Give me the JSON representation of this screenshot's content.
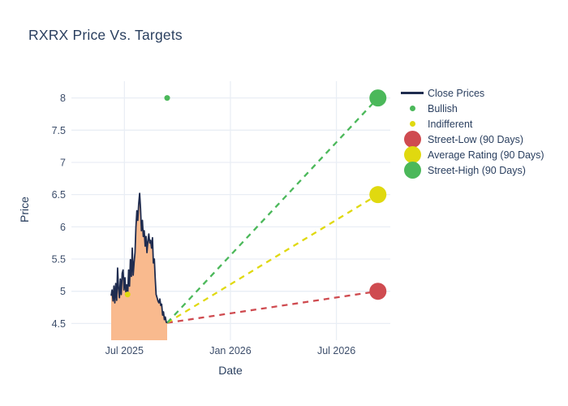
{
  "chart_data": {
    "type": "line",
    "title": "RXRX Price Vs. Targets",
    "xlabel": "Date",
    "ylabel": "Price",
    "x_axis": {
      "ticks": [
        {
          "label": "Jul 2025",
          "month": 0
        },
        {
          "label": "Jan 2026",
          "month": 6
        },
        {
          "label": "Jul 2026",
          "month": 12
        }
      ],
      "range_months": [
        -3,
        15.05
      ]
    },
    "y_axis": {
      "ticks": [
        4.5,
        5,
        5.5,
        6,
        6.5,
        7,
        7.5,
        8
      ],
      "range": [
        4.24,
        8.26
      ]
    },
    "close_prices": {
      "name": "Close Prices",
      "start_month": -0.75,
      "end_month": 2.42,
      "values": [
        4.93,
        5.02,
        4.85,
        5.08,
        4.82,
        5.12,
        4.86,
        5.36,
        5.05,
        4.9,
        5.19,
        4.95,
        5.28,
        5.33,
        5.02,
        5.21,
        4.99,
        5.1,
        4.95,
        5.33,
        5.08,
        5.49,
        5.23,
        5.67,
        5.25,
        5.45,
        5.6,
        5.99,
        6.25,
        6.1,
        6.35,
        6.52,
        6.28,
        5.94,
        6.1,
        5.85,
        5.94,
        5.7,
        5.85,
        5.6,
        5.77,
        5.89,
        5.75,
        5.79,
        5.67,
        5.83,
        5.44,
        5.5,
        5.2,
        4.95,
        4.9,
        4.85,
        4.82,
        4.88,
        4.78,
        4.8,
        4.63,
        4.68,
        4.56,
        4.6,
        4.52,
        4.51
      ]
    },
    "ratings": [
      {
        "name": "Bullish",
        "month": 2.42,
        "price": 8.0,
        "color_key": "green"
      },
      {
        "name": "Indifferent",
        "month": 0.18,
        "price": 4.95,
        "color_key": "yellow"
      }
    ],
    "targets": [
      {
        "name": "Street-Low (90 Days)",
        "month": 14.35,
        "price": 5.0,
        "color_key": "red"
      },
      {
        "name": "Average Rating (90 Days)",
        "month": 14.35,
        "price": 6.5,
        "color_key": "yellow"
      },
      {
        "name": "Street-High (90 Days)",
        "month": 14.35,
        "price": 8.0,
        "color_key": "green"
      }
    ],
    "legend": [
      {
        "label": "Close Prices",
        "swatch": "line",
        "color_key": "navy"
      },
      {
        "label": "Bullish",
        "swatch": "dot-small",
        "color_key": "green"
      },
      {
        "label": "Indifferent",
        "swatch": "dot-small",
        "color_key": "yellow"
      },
      {
        "label": "Street-Low (90 Days)",
        "swatch": "dot-large",
        "color_key": "red"
      },
      {
        "label": "Average Rating (90 Days)",
        "swatch": "dot-large",
        "color_key": "yellow"
      },
      {
        "label": "Street-High (90 Days)",
        "swatch": "dot-large",
        "color_key": "green"
      }
    ],
    "colors": {
      "navy": "#1f2c4f",
      "green": "#4bb85a",
      "yellow": "#e0d90f",
      "red": "#cf4b50",
      "fill": "#f9ba8e",
      "grid": "#e9eef5",
      "title_text": "#2a3f5f",
      "tick_text": "#3d4e6b"
    }
  }
}
